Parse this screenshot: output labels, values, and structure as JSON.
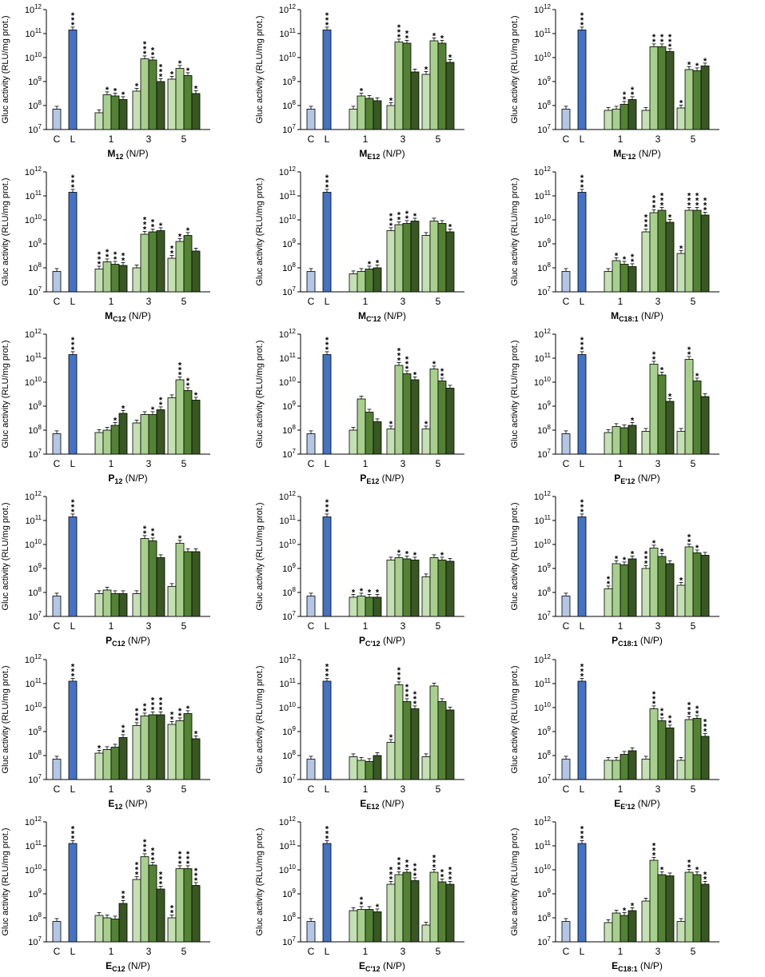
{
  "figure": {
    "ylabel": "Gluc activity (RLU/mg prot.)",
    "y_tick_base": "10",
    "y_tick_exponents": [
      7,
      8,
      9,
      10,
      11,
      12
    ],
    "x_unit": " (N/P)",
    "ctrl_labels": [
      "C",
      "L"
    ],
    "group_labels": [
      "1",
      "3",
      "5"
    ],
    "colors": {
      "control": "#b4c6e7",
      "lipofectamine": "#4472c4",
      "series": [
        "#e2efd9",
        "#c5e0b3",
        "#a8d08d",
        "#548235",
        "#385723"
      ]
    }
  },
  "chart_data": [
    {
      "type": "bar",
      "title_main": "M",
      "title_sub": "12",
      "yscale": "log",
      "ylim": [
        7,
        12
      ],
      "values_log10": {
        "C": 7.85,
        "L": 11.15,
        "groups": [
          [
            7.7,
            8.45,
            8.4,
            8.25
          ],
          [
            8.6,
            9.95,
            9.9,
            9.0
          ],
          [
            9.1,
            9.55,
            9.25,
            8.5
          ]
        ]
      },
      "sig": {
        "C": "",
        "L": "***",
        "groups": [
          [
            "",
            "*",
            "*",
            "*"
          ],
          [
            "*",
            "***",
            "**",
            "***"
          ],
          [
            "*",
            "*",
            "*",
            "*"
          ]
        ]
      }
    },
    {
      "type": "bar",
      "title_main": "M",
      "title_sub": "E12",
      "yscale": "log",
      "ylim": [
        7,
        12
      ],
      "values_log10": {
        "C": 7.85,
        "L": 11.15,
        "groups": [
          [
            7.85,
            8.4,
            8.3,
            8.2
          ],
          [
            8.0,
            10.65,
            10.6,
            9.4
          ],
          [
            9.3,
            10.7,
            10.6,
            9.8
          ]
        ]
      },
      "sig": {
        "C": "",
        "L": "***",
        "groups": [
          [
            "",
            "*",
            "",
            ""
          ],
          [
            "*",
            "***",
            "**",
            ""
          ],
          [
            "*",
            "*",
            "*",
            "*"
          ]
        ]
      }
    },
    {
      "type": "bar",
      "title_main": "M",
      "title_sub": "E'12",
      "yscale": "log",
      "ylim": [
        7,
        12
      ],
      "values_log10": {
        "C": 7.85,
        "L": 11.15,
        "groups": [
          [
            7.8,
            7.85,
            8.05,
            8.25
          ],
          [
            7.8,
            10.45,
            10.45,
            10.25
          ],
          [
            7.9,
            9.5,
            9.45,
            9.65
          ]
        ]
      },
      "sig": {
        "C": "",
        "L": "***",
        "groups": [
          [
            "",
            "",
            "**",
            "**"
          ],
          [
            "",
            "**",
            "**",
            "***"
          ],
          [
            "*",
            "*",
            "*",
            "*"
          ]
        ]
      }
    },
    {
      "type": "bar",
      "title_main": "M",
      "title_sub": "C12",
      "yscale": "log",
      "ylim": [
        7,
        12
      ],
      "values_log10": {
        "C": 7.85,
        "L": 11.15,
        "groups": [
          [
            7.95,
            8.25,
            8.15,
            8.1
          ],
          [
            8.0,
            9.4,
            9.5,
            9.55
          ],
          [
            8.4,
            9.1,
            9.35,
            8.7
          ]
        ]
      },
      "sig": {
        "C": "",
        "L": "***",
        "groups": [
          [
            "***",
            "**",
            "**",
            "**"
          ],
          [
            "",
            "***",
            "**",
            "*"
          ],
          [
            "**",
            "*",
            "*",
            ""
          ]
        ]
      }
    },
    {
      "type": "bar",
      "title_main": "M",
      "title_sub": "C'12",
      "yscale": "log",
      "ylim": [
        7,
        12
      ],
      "values_log10": {
        "C": 7.85,
        "L": 11.15,
        "groups": [
          [
            7.75,
            7.85,
            7.95,
            8.0
          ],
          [
            9.55,
            9.8,
            9.85,
            9.95
          ],
          [
            9.35,
            9.95,
            9.85,
            9.5
          ]
        ]
      },
      "sig": {
        "C": "",
        "L": "***",
        "groups": [
          [
            "",
            "",
            "*",
            "*"
          ],
          [
            "***",
            "**",
            "**",
            "*"
          ],
          [
            "",
            "",
            "",
            "*"
          ]
        ]
      }
    },
    {
      "type": "bar",
      "title_main": "M",
      "title_sub": "C18:1",
      "yscale": "log",
      "ylim": [
        7,
        12
      ],
      "values_log10": {
        "C": 7.85,
        "L": 11.15,
        "groups": [
          [
            7.85,
            8.3,
            8.15,
            8.05
          ],
          [
            9.5,
            10.3,
            10.4,
            9.9
          ],
          [
            8.6,
            10.4,
            10.4,
            10.2
          ]
        ]
      },
      "sig": {
        "C": "",
        "L": "***",
        "groups": [
          [
            "",
            "*",
            "*",
            "**"
          ],
          [
            "***",
            "***",
            "***",
            "*"
          ],
          [
            "*",
            "***",
            "***",
            "***"
          ]
        ]
      }
    },
    {
      "type": "bar",
      "title_main": "P",
      "title_sub": "12",
      "yscale": "log",
      "ylim": [
        7,
        12
      ],
      "values_log10": {
        "C": 7.85,
        "L": 11.15,
        "groups": [
          [
            7.9,
            8.0,
            8.2,
            8.7
          ],
          [
            8.3,
            8.65,
            8.65,
            8.85
          ],
          [
            9.35,
            10.1,
            9.65,
            9.25
          ]
        ]
      },
      "sig": {
        "C": "",
        "L": "***",
        "groups": [
          [
            "",
            "",
            "*",
            "*"
          ],
          [
            "",
            "",
            "*",
            "**"
          ],
          [
            "",
            "***",
            "**",
            "*"
          ]
        ]
      }
    },
    {
      "type": "bar",
      "title_main": "P",
      "title_sub": "E12",
      "yscale": "log",
      "ylim": [
        7,
        12
      ],
      "values_log10": {
        "C": 7.85,
        "L": 11.15,
        "groups": [
          [
            8.0,
            9.3,
            8.75,
            8.35
          ],
          [
            8.05,
            10.7,
            10.35,
            10.1
          ],
          [
            8.05,
            10.55,
            10.05,
            9.75
          ]
        ]
      },
      "sig": {
        "C": "",
        "L": "***",
        "groups": [
          [
            "",
            "",
            "",
            ""
          ],
          [
            "*",
            "***",
            "***",
            "*"
          ],
          [
            "*",
            "*",
            "**",
            ""
          ]
        ]
      }
    },
    {
      "type": "bar",
      "title_main": "P",
      "title_sub": "E'12",
      "yscale": "log",
      "ylim": [
        7,
        12
      ],
      "values_log10": {
        "C": 7.85,
        "L": 11.15,
        "groups": [
          [
            7.9,
            8.15,
            8.1,
            8.2
          ],
          [
            7.95,
            10.75,
            10.3,
            9.2
          ],
          [
            7.95,
            10.95,
            10.05,
            9.4
          ]
        ]
      },
      "sig": {
        "C": "",
        "L": "***",
        "groups": [
          [
            "",
            "",
            "",
            "*"
          ],
          [
            "",
            "**",
            "*",
            "*"
          ],
          [
            "",
            "**",
            "*",
            ""
          ]
        ]
      }
    },
    {
      "type": "bar",
      "title_main": "P",
      "title_sub": "C12",
      "yscale": "log",
      "ylim": [
        7,
        12
      ],
      "values_log10": {
        "C": 7.85,
        "L": 11.15,
        "groups": [
          [
            7.95,
            8.1,
            7.95,
            7.95
          ],
          [
            7.95,
            10.25,
            10.15,
            9.45
          ],
          [
            8.25,
            10.05,
            9.7,
            9.7
          ]
        ]
      },
      "sig": {
        "C": "",
        "L": "***",
        "groups": [
          [
            "",
            "",
            "",
            ""
          ],
          [
            "",
            "**",
            "**",
            ""
          ],
          [
            "",
            "*",
            "",
            ""
          ]
        ]
      }
    },
    {
      "type": "bar",
      "title_main": "P",
      "title_sub": "C'12",
      "yscale": "log",
      "ylim": [
        7,
        12
      ],
      "values_log10": {
        "C": 7.85,
        "L": 11.15,
        "groups": [
          [
            7.8,
            7.85,
            7.8,
            7.8
          ],
          [
            9.35,
            9.45,
            9.4,
            9.35
          ],
          [
            8.65,
            9.45,
            9.35,
            9.3
          ]
        ]
      },
      "sig": {
        "C": "",
        "L": "***",
        "groups": [
          [
            "*",
            "*",
            "*",
            "*"
          ],
          [
            "",
            "*",
            "*",
            "*"
          ],
          [
            "",
            "",
            "*",
            ""
          ]
        ]
      }
    },
    {
      "type": "bar",
      "title_main": "P",
      "title_sub": "C18:1",
      "yscale": "log",
      "ylim": [
        7,
        12
      ],
      "values_log10": {
        "C": 7.85,
        "L": 11.15,
        "groups": [
          [
            8.15,
            9.2,
            9.15,
            9.4
          ],
          [
            9.0,
            9.85,
            9.5,
            9.2
          ],
          [
            8.3,
            9.9,
            9.65,
            9.55
          ]
        ]
      },
      "sig": {
        "C": "",
        "L": "***",
        "groups": [
          [
            "**",
            "*",
            "*",
            "*"
          ],
          [
            "***",
            "*",
            "*",
            ""
          ],
          [
            "*",
            "**",
            "*",
            ""
          ]
        ]
      }
    },
    {
      "type": "bar",
      "title_main": "E",
      "title_sub": "12",
      "yscale": "log",
      "ylim": [
        7,
        12
      ],
      "values_log10": {
        "C": 7.85,
        "L": 11.1,
        "groups": [
          [
            8.1,
            8.25,
            8.35,
            8.75
          ],
          [
            9.25,
            9.65,
            9.7,
            9.7
          ],
          [
            9.3,
            9.45,
            9.75,
            8.7
          ]
        ]
      },
      "sig": {
        "C": "",
        "L": "***",
        "groups": [
          [
            "*",
            "",
            "",
            "**"
          ],
          [
            "***",
            "**",
            "***",
            "***"
          ],
          [
            "**",
            "**",
            "*",
            "*"
          ]
        ]
      }
    },
    {
      "type": "bar",
      "title_main": "E",
      "title_sub": "E12",
      "yscale": "log",
      "ylim": [
        7,
        12
      ],
      "values_log10": {
        "C": 7.85,
        "L": 11.1,
        "groups": [
          [
            7.95,
            7.8,
            7.75,
            8.0
          ],
          [
            8.55,
            10.95,
            10.25,
            9.95
          ],
          [
            7.95,
            10.9,
            10.25,
            9.9
          ]
        ]
      },
      "sig": {
        "C": "",
        "L": "***",
        "groups": [
          [
            "",
            "",
            "",
            ""
          ],
          [
            "*",
            "***",
            "***",
            "***"
          ],
          [
            "",
            "",
            "",
            ""
          ]
        ]
      }
    },
    {
      "type": "bar",
      "title_main": "E",
      "title_sub": "E'12",
      "yscale": "log",
      "ylim": [
        7,
        12
      ],
      "values_log10": {
        "C": 7.85,
        "L": 11.1,
        "groups": [
          [
            7.8,
            7.8,
            8.05,
            8.2
          ],
          [
            7.85,
            9.95,
            9.45,
            9.15
          ],
          [
            7.8,
            9.5,
            9.55,
            8.8
          ]
        ]
      },
      "sig": {
        "C": "",
        "L": "***",
        "groups": [
          [
            "",
            "",
            "",
            ""
          ],
          [
            "",
            "***",
            "**",
            "**"
          ],
          [
            "",
            "***",
            "**",
            "***"
          ]
        ]
      }
    },
    {
      "type": "bar",
      "title_main": "E",
      "title_sub": "C12",
      "yscale": "log",
      "ylim": [
        7,
        12
      ],
      "values_log10": {
        "C": 7.85,
        "L": 11.1,
        "groups": [
          [
            8.1,
            8.0,
            7.95,
            8.6
          ],
          [
            9.6,
            10.55,
            10.2,
            9.2
          ],
          [
            8.0,
            10.05,
            10.05,
            9.35
          ]
        ]
      },
      "sig": {
        "C": "",
        "L": "***",
        "groups": [
          [
            "",
            "",
            "",
            "**"
          ],
          [
            "***",
            "***",
            "***",
            "***"
          ],
          [
            "**",
            "***",
            "***",
            "***"
          ]
        ]
      }
    },
    {
      "type": "bar",
      "title_main": "E",
      "title_sub": "C'12",
      "yscale": "log",
      "ylim": [
        7,
        12
      ],
      "values_log10": {
        "C": 7.85,
        "L": 11.1,
        "groups": [
          [
            8.3,
            8.35,
            8.35,
            8.25
          ],
          [
            9.4,
            9.8,
            9.9,
            9.55
          ],
          [
            7.7,
            9.9,
            9.5,
            9.4
          ]
        ]
      },
      "sig": {
        "C": "",
        "L": "***",
        "groups": [
          [
            "",
            "**",
            "",
            "*"
          ],
          [
            "***",
            "***",
            "**",
            "***"
          ],
          [
            "",
            "***",
            "**",
            "***"
          ]
        ]
      }
    },
    {
      "type": "bar",
      "title_main": "E",
      "title_sub": "C18:1",
      "yscale": "log",
      "ylim": [
        7,
        12
      ],
      "values_log10": {
        "C": 7.85,
        "L": 11.1,
        "groups": [
          [
            7.8,
            8.2,
            8.1,
            8.3
          ],
          [
            8.7,
            10.4,
            9.8,
            9.75
          ],
          [
            7.85,
            9.9,
            9.8,
            9.4
          ]
        ]
      },
      "sig": {
        "C": "",
        "L": "***",
        "groups": [
          [
            "",
            "",
            "*",
            "*"
          ],
          [
            "",
            "***",
            "*",
            ""
          ],
          [
            "",
            "**",
            "*",
            "**"
          ]
        ]
      }
    }
  ]
}
